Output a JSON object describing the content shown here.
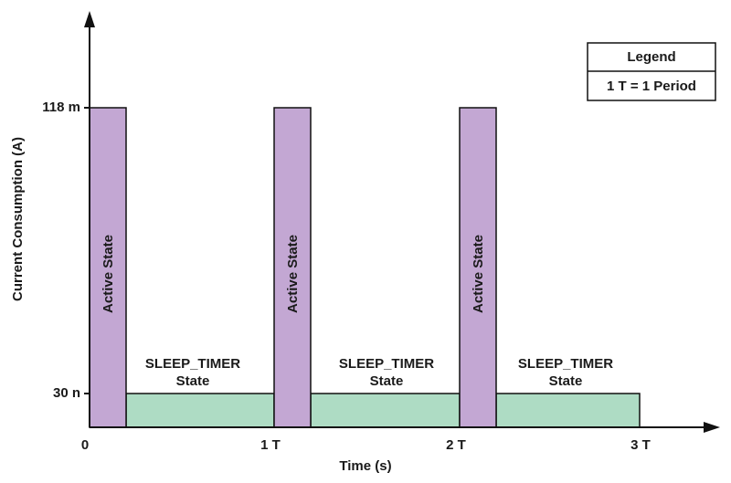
{
  "y_axis": {
    "title": "Current Consumption (A)",
    "ticks": [
      "118 m",
      "30 n"
    ]
  },
  "x_axis": {
    "title": "Time (s)",
    "ticks": [
      "0",
      "1 T",
      "2 T",
      "3 T"
    ]
  },
  "active_blocks": [
    {
      "label": "Active State"
    },
    {
      "label": "Active State"
    },
    {
      "label": "Active State"
    }
  ],
  "sleep_blocks": [
    {
      "label": [
        "SLEEP_TIMER",
        "State"
      ]
    },
    {
      "label": [
        "SLEEP_TIMER",
        "State"
      ]
    },
    {
      "label": [
        "SLEEP_TIMER",
        "State"
      ]
    }
  ],
  "legend": {
    "title": "Legend",
    "entries": [
      "1 T = 1 Period"
    ]
  }
}
